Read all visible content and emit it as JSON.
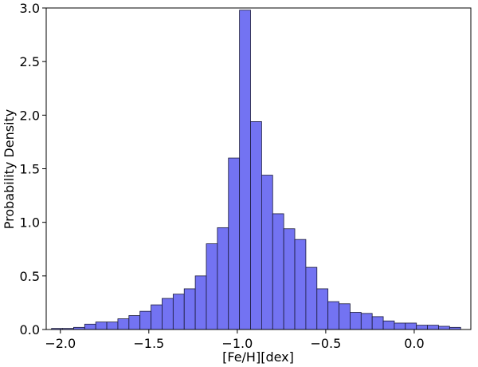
{
  "chart_data": {
    "type": "bar",
    "title": "",
    "xlabel": "[Fe/H][dex]",
    "ylabel": "Probability Density",
    "xlim": [
      -2.08,
      0.32
    ],
    "ylim": [
      0,
      3.0
    ],
    "grid": false,
    "bar_color": "#7373f2",
    "edge_color": "#1a1a3a",
    "bins": {
      "start": -2.05,
      "width": 0.0625,
      "values": [
        0.01,
        0.01,
        0.02,
        0.05,
        0.07,
        0.07,
        0.1,
        0.13,
        0.17,
        0.23,
        0.29,
        0.33,
        0.38,
        0.5,
        0.8,
        0.95,
        1.6,
        2.98,
        1.94,
        1.44,
        1.08,
        0.94,
        0.84,
        0.58,
        0.38,
        0.26,
        0.24,
        0.16,
        0.15,
        0.12,
        0.08,
        0.06,
        0.06,
        0.04,
        0.04,
        0.03,
        0.02
      ]
    },
    "xticks": [
      -2.0,
      -1.5,
      -1.0,
      -0.5,
      0.0
    ],
    "xtick_labels": [
      "−2.0",
      "−1.5",
      "−1.0",
      "−0.5",
      "0.0"
    ],
    "yticks": [
      0.0,
      0.5,
      1.0,
      1.5,
      2.0,
      2.5,
      3.0
    ],
    "ytick_labels": [
      "0.0",
      "0.5",
      "1.0",
      "1.5",
      "2.0",
      "2.5",
      "3.0"
    ]
  }
}
